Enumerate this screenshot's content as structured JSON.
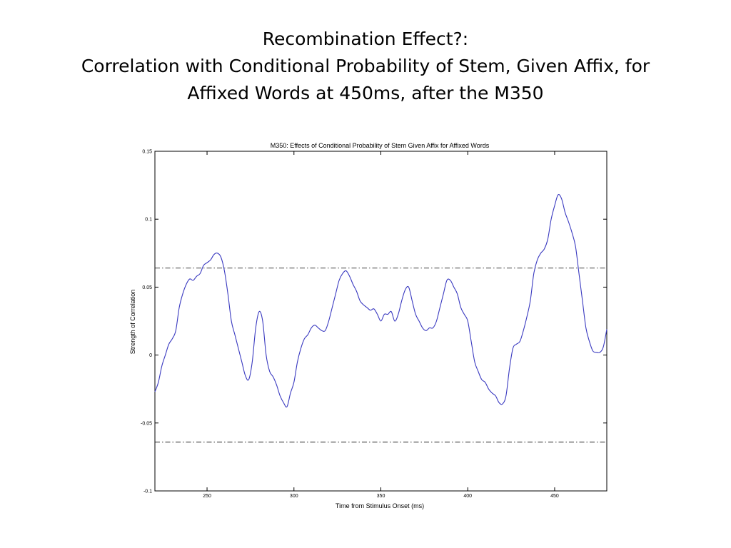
{
  "slide": {
    "title_line1": "Recombination Effect?:",
    "title_line2": "Correlation with Conditional Probability of Stem, Given Affix, for",
    "title_line3": "Affixed Words at 450ms, after the M350"
  },
  "colors": {
    "series": "#3a3ac0",
    "threshold": "#000000",
    "axes": "#000000"
  },
  "chart_data": {
    "type": "line",
    "title": "M350: Effects of Conditional Probability of Stem Given Affix for Affixed Words",
    "xlabel": "Time from Stimulus Onset (ms)",
    "ylabel": "Strength of Correlation",
    "xlim": [
      220,
      480
    ],
    "ylim": [
      -0.1,
      0.15
    ],
    "xticks": [
      250,
      300,
      350,
      400,
      450
    ],
    "xtick_labels": [
      "250",
      "300",
      "350",
      "400",
      "450"
    ],
    "yticks": [
      -0.1,
      -0.05,
      0,
      0.05,
      0.1,
      0.15
    ],
    "ytick_labels": [
      "-0.1",
      "-0.05",
      "0",
      "0.05",
      "0.1",
      "0.15"
    ],
    "grid": false,
    "thresholds": [
      0.064,
      -0.064
    ],
    "series": [
      {
        "x": [
          220,
          222,
          224,
          226,
          228,
          230,
          232,
          234,
          236,
          238,
          240,
          242,
          244,
          246,
          248,
          250,
          252,
          254,
          256,
          258,
          260,
          262,
          264,
          266,
          268,
          270,
          272,
          274,
          276,
          278,
          280,
          282,
          284,
          286,
          288,
          290,
          292,
          294,
          296,
          298,
          300,
          302,
          304,
          306,
          308,
          310,
          312,
          314,
          316,
          318,
          320,
          322,
          324,
          326,
          328,
          330,
          332,
          334,
          336,
          338,
          340,
          342,
          344,
          346,
          348,
          350,
          352,
          354,
          356,
          358,
          360,
          362,
          364,
          366,
          368,
          370,
          372,
          374,
          376,
          378,
          380,
          382,
          384,
          386,
          388,
          390,
          392,
          394,
          396,
          398,
          400,
          402,
          404,
          406,
          408,
          410,
          412,
          414,
          416,
          418,
          420,
          422,
          424,
          426,
          428,
          430,
          432,
          434,
          436,
          438,
          440,
          442,
          444,
          446,
          448,
          450,
          452,
          454,
          456,
          458,
          460,
          462,
          464,
          466,
          468,
          470,
          472,
          474,
          476,
          478,
          480
        ],
        "values": [
          -0.027,
          -0.02,
          -0.008,
          0.0,
          0.008,
          0.012,
          0.018,
          0.035,
          0.045,
          0.052,
          0.056,
          0.055,
          0.058,
          0.06,
          0.066,
          0.068,
          0.07,
          0.074,
          0.075,
          0.072,
          0.062,
          0.045,
          0.025,
          0.015,
          0.005,
          -0.005,
          -0.015,
          -0.018,
          -0.005,
          0.02,
          0.032,
          0.025,
          0.0,
          -0.012,
          -0.016,
          -0.022,
          -0.03,
          -0.035,
          -0.038,
          -0.028,
          -0.02,
          -0.005,
          0.005,
          0.012,
          0.015,
          0.02,
          0.022,
          0.02,
          0.018,
          0.018,
          0.025,
          0.035,
          0.045,
          0.055,
          0.06,
          0.062,
          0.058,
          0.052,
          0.047,
          0.04,
          0.037,
          0.035,
          0.033,
          0.034,
          0.03,
          0.025,
          0.03,
          0.03,
          0.032,
          0.025,
          0.03,
          0.04,
          0.048,
          0.05,
          0.04,
          0.03,
          0.025,
          0.02,
          0.018,
          0.02,
          0.02,
          0.025,
          0.035,
          0.045,
          0.055,
          0.055,
          0.05,
          0.045,
          0.035,
          0.03,
          0.025,
          0.01,
          -0.005,
          -0.012,
          -0.018,
          -0.02,
          -0.025,
          -0.028,
          -0.03,
          -0.035,
          -0.036,
          -0.03,
          -0.01,
          0.005,
          0.008,
          0.01,
          0.018,
          0.028,
          0.04,
          0.06,
          0.07,
          0.075,
          0.078,
          0.085,
          0.1,
          0.11,
          0.118,
          0.115,
          0.105,
          0.098,
          0.09,
          0.08,
          0.06,
          0.04,
          0.02,
          0.01,
          0.003,
          0.002,
          0.002,
          0.006,
          0.019
        ]
      }
    ]
  }
}
